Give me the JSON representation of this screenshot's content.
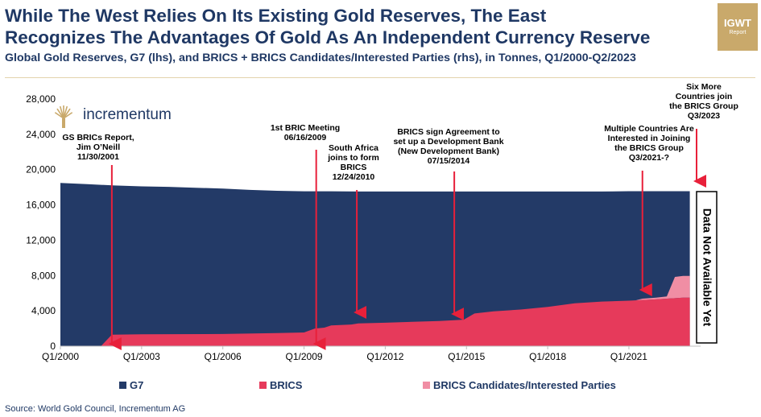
{
  "header": {
    "title_line1": "While The West Relies On Its Existing Gold Reserves, The East",
    "title_line2": "Recognizes The Advantages Of Gold As An Independent Currency Reserve",
    "subtitle": "Global Gold Reserves, G7 (lhs), and BRICS + BRICS Candidates/Interested Parties (rhs), in Tonnes, Q1/2000-Q2/2023"
  },
  "badge": {
    "line1": "IGWT",
    "line2": "Report"
  },
  "logo": {
    "text": "incrementum"
  },
  "source": "Source: World Gold Council, Incrementum AG",
  "colors": {
    "g7": "#233a67",
    "brics": "#e63a5b",
    "candidates": "#f08ea4",
    "title": "#1f3864",
    "arrow": "#e8203a",
    "badge": "#c9a96b"
  },
  "chart_data": {
    "type": "area",
    "stacked": true,
    "x_label": "",
    "y_label": "",
    "ylim": [
      0,
      28000
    ],
    "y_ticks": [
      0,
      4000,
      8000,
      12000,
      16000,
      20000,
      24000,
      28000
    ],
    "y_tick_labels": [
      "0",
      "4,000",
      "8,000",
      "12,000",
      "16,000",
      "20,000",
      "24,000",
      "28,000"
    ],
    "x_tick_labels": [
      "Q1/2000",
      "Q1/2003",
      "Q1/2006",
      "Q1/2009",
      "Q1/2012",
      "Q1/2015",
      "Q1/2018",
      "Q1/2021"
    ],
    "x_ticks": [
      2000,
      2003,
      2006,
      2009,
      2012,
      2015,
      2018,
      2021
    ],
    "xlim": [
      2000,
      2023.5
    ],
    "series": [
      {
        "name": "G7",
        "points": [
          [
            2000,
            18500
          ],
          [
            2001,
            18350
          ],
          [
            2002,
            18200
          ],
          [
            2003,
            18100
          ],
          [
            2004,
            18050
          ],
          [
            2005,
            17950
          ],
          [
            2006,
            17850
          ],
          [
            2007,
            17700
          ],
          [
            2008,
            17600
          ],
          [
            2009,
            17550
          ],
          [
            2010,
            17550
          ],
          [
            2011,
            17520
          ],
          [
            2012,
            17520
          ],
          [
            2013,
            17520
          ],
          [
            2014,
            17520
          ],
          [
            2015,
            17520
          ],
          [
            2016,
            17520
          ],
          [
            2017,
            17520
          ],
          [
            2018,
            17520
          ],
          [
            2019,
            17520
          ],
          [
            2020,
            17520
          ],
          [
            2021,
            17560
          ],
          [
            2022,
            17560
          ],
          [
            2023,
            17560
          ],
          [
            2023.25,
            17560
          ]
        ]
      },
      {
        "name": "BRICS",
        "points": [
          [
            2000,
            0
          ],
          [
            2001.5,
            0
          ],
          [
            2001.9,
            1300
          ],
          [
            2003,
            1350
          ],
          [
            2006,
            1380
          ],
          [
            2008,
            1480
          ],
          [
            2009,
            1550
          ],
          [
            2009.4,
            2000
          ],
          [
            2009.75,
            2100
          ],
          [
            2010,
            2350
          ],
          [
            2010.75,
            2450
          ],
          [
            2011,
            2580
          ],
          [
            2012,
            2650
          ],
          [
            2013,
            2750
          ],
          [
            2014,
            2850
          ],
          [
            2014.9,
            3000
          ],
          [
            2015.3,
            3700
          ],
          [
            2016,
            3950
          ],
          [
            2017,
            4150
          ],
          [
            2018,
            4450
          ],
          [
            2019,
            4850
          ],
          [
            2020,
            5050
          ],
          [
            2021,
            5150
          ],
          [
            2021.3,
            5200
          ],
          [
            2022,
            5300
          ],
          [
            2023,
            5500
          ],
          [
            2023.25,
            5500
          ]
        ]
      },
      {
        "name": "BRICS Candidates/Interested Parties",
        "points": [
          [
            2021.25,
            0
          ],
          [
            2021.5,
            150
          ],
          [
            2022,
            200
          ],
          [
            2022.4,
            250
          ],
          [
            2022.7,
            2400
          ],
          [
            2023,
            2450
          ],
          [
            2023.25,
            2450
          ]
        ]
      }
    ],
    "legend": {
      "position": "bottom"
    },
    "annotations": [
      {
        "label_lines": [
          "GS BRICs Report,",
          "Jim O’Neill",
          "11/30/2001"
        ],
        "x": 2001.9
      },
      {
        "label_lines": [
          "1st  BRIC Meeting",
          "06/16/2009"
        ],
        "x": 2009.45
      },
      {
        "label_lines": [
          "South Africa",
          "joins to form",
          "BRICS",
          "12/24/2010"
        ],
        "x": 2010.95
      },
      {
        "label_lines": [
          "BRICS sign Agreement to",
          "set up a Development Bank",
          "(New Development Bank)",
          "07/15/2014"
        ],
        "x": 2014.55
      },
      {
        "label_lines": [
          "Multiple Countries Are",
          "Interested in Joining",
          "the BRICS Group",
          "Q3/2021-?"
        ],
        "x": 2021.5
      },
      {
        "label_lines": [
          "Six More",
          "Countries join",
          "the BRICS Group",
          "Q3/2023"
        ],
        "x": 2023.5
      }
    ],
    "data_not_available": "Data Not Available Yet"
  }
}
